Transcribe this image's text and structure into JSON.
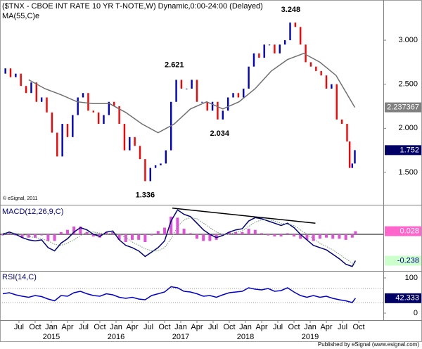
{
  "chart_data": [
    {
      "type": "line",
      "title": "($TNX - CBOE INT RATE 10 YR T-NOTE,W) Dynamic,0:00-24:00 (Delayed)",
      "subtitle": "MA(55,C)e",
      "watermark": "© eSignal, 2011",
      "xlim": [
        2014.207,
        2020.13
      ],
      "ylim": [
        1.14,
        3.456
      ],
      "yticks": [
        {
          "value": 1.5,
          "label": "1.500"
        },
        {
          "value": 2.0,
          "label": "2.000"
        },
        {
          "value": 2.5,
          "label": "2.500"
        },
        {
          "value": 3.0,
          "label": "3.000"
        }
      ],
      "series": [
        {
          "up_color": "#0000cc",
          "down_color": "#ff0000",
          "box_color": "#000066",
          "box_text_color": "#ffffff",
          "x": [
            2014.21,
            2014.29,
            2014.37,
            2014.45,
            2014.53,
            2014.61,
            2014.69,
            2014.77,
            2014.85,
            2014.93,
            2015.01,
            2015.09,
            2015.17,
            2015.25,
            2015.33,
            2015.41,
            2015.49,
            2015.57,
            2015.65,
            2015.73,
            2015.81,
            2015.89,
            2015.97,
            2016.05,
            2016.13,
            2016.21,
            2016.29,
            2016.37,
            2016.45,
            2016.53,
            2016.61,
            2016.69,
            2016.77,
            2016.85,
            2016.93,
            2017.01,
            2017.09,
            2017.17,
            2017.25,
            2017.33,
            2017.41,
            2017.49,
            2017.57,
            2017.65,
            2017.73,
            2017.81,
            2017.89,
            2017.97,
            2018.05,
            2018.13,
            2018.21,
            2018.29,
            2018.37,
            2018.45,
            2018.53,
            2018.61,
            2018.69,
            2018.77,
            2018.85,
            2018.93,
            2019.01,
            2019.09,
            2019.17,
            2019.25,
            2019.33,
            2019.41,
            2019.49,
            2019.57,
            2019.61,
            2019.65,
            2019.69
          ],
          "values": [
            2.62,
            2.68,
            2.58,
            2.62,
            2.48,
            2.4,
            2.52,
            2.3,
            2.35,
            2.18,
            1.95,
            1.68,
            2.05,
            1.9,
            2.15,
            2.35,
            2.4,
            2.2,
            2.18,
            2.05,
            2.15,
            2.3,
            2.25,
            2.05,
            1.75,
            1.9,
            1.8,
            1.65,
            1.4,
            1.55,
            1.58,
            1.6,
            1.75,
            2.3,
            2.55,
            2.45,
            2.45,
            2.55,
            2.3,
            2.3,
            2.2,
            2.3,
            2.1,
            2.2,
            2.35,
            2.4,
            2.35,
            2.45,
            2.7,
            2.85,
            2.8,
            2.95,
            2.95,
            2.85,
            2.95,
            3.0,
            3.2,
            3.15,
            2.95,
            2.75,
            2.7,
            2.65,
            2.6,
            2.45,
            2.5,
            2.1,
            2.05,
            1.85,
            1.55,
            1.6,
            1.752
          ]
        },
        {
          "color": "#707070",
          "box_color": "#808080",
          "box_text_color": "#ffffff",
          "x": [
            2014.65,
            2014.9,
            2015.15,
            2015.4,
            2015.65,
            2015.9,
            2016.15,
            2016.4,
            2016.65,
            2016.9,
            2017.15,
            2017.4,
            2017.65,
            2017.9,
            2018.15,
            2018.4,
            2018.65,
            2018.9,
            2019.15,
            2019.4,
            2019.69
          ],
          "values": [
            2.55,
            2.45,
            2.38,
            2.3,
            2.28,
            2.28,
            2.18,
            2.05,
            1.95,
            2.05,
            2.22,
            2.3,
            2.22,
            2.3,
            2.45,
            2.65,
            2.78,
            2.85,
            2.75,
            2.6,
            2.237367
          ]
        }
      ],
      "annotations": [
        {
          "x": 2016.9,
          "y": 2.621,
          "position": "above"
        },
        {
          "x": 2017.6,
          "y": 2.034,
          "position": "below"
        },
        {
          "x": 2016.45,
          "y": 1.336,
          "position": "below"
        },
        {
          "x": 2018.7,
          "y": 3.248,
          "position": "above"
        }
      ]
    },
    {
      "type": "line",
      "title": "MACD(12,26,9,C)",
      "xlim": [
        2014.207,
        2020.13
      ],
      "ylim": [
        -0.33,
        0.26
      ],
      "zero_line": true,
      "series": [
        {
          "kind": "bar",
          "color": "#e050d8",
          "box_color": "#ff66cc",
          "box_text_color": "#ffffff",
          "x": [
            2014.25,
            2014.35,
            2014.45,
            2014.55,
            2014.65,
            2014.75,
            2014.85,
            2014.95,
            2015.05,
            2015.15,
            2015.25,
            2015.35,
            2015.45,
            2015.55,
            2015.65,
            2015.75,
            2015.85,
            2015.95,
            2016.05,
            2016.15,
            2016.25,
            2016.35,
            2016.45,
            2016.55,
            2016.65,
            2016.75,
            2016.85,
            2016.95,
            2017.05,
            2017.15,
            2017.25,
            2017.35,
            2017.45,
            2017.55,
            2017.65,
            2017.75,
            2017.85,
            2017.95,
            2018.05,
            2018.15,
            2018.25,
            2018.35,
            2018.45,
            2018.55,
            2018.65,
            2018.75,
            2018.85,
            2018.95,
            2019.05,
            2019.15,
            2019.25,
            2019.35,
            2019.45,
            2019.55,
            2019.65,
            2019.7
          ],
          "values": [
            -0.01,
            0.01,
            -0.01,
            -0.03,
            -0.03,
            -0.03,
            -0.01,
            -0.06,
            -0.06,
            0.02,
            0.04,
            0.07,
            0.07,
            0.02,
            -0.02,
            -0.03,
            0.02,
            0.02,
            -0.05,
            -0.07,
            -0.05,
            -0.05,
            -0.07,
            -0.01,
            0.03,
            0.06,
            0.16,
            0.15,
            0.05,
            0.01,
            -0.04,
            -0.06,
            -0.06,
            -0.05,
            -0.01,
            0.02,
            0.02,
            0.02,
            0.05,
            0.04,
            0.01,
            -0.01,
            -0.02,
            -0.02,
            0.01,
            -0.02,
            -0.04,
            -0.05,
            -0.06,
            -0.04,
            -0.03,
            -0.04,
            -0.04,
            -0.05,
            -0.03,
            0.028
          ]
        },
        {
          "color": "#000080",
          "box_color": "#ccffcc",
          "box_text_color": "#000080",
          "x": [
            2014.25,
            2014.35,
            2014.45,
            2014.55,
            2014.65,
            2014.75,
            2014.85,
            2014.95,
            2015.05,
            2015.15,
            2015.25,
            2015.35,
            2015.45,
            2015.55,
            2015.65,
            2015.75,
            2015.85,
            2015.95,
            2016.05,
            2016.15,
            2016.25,
            2016.35,
            2016.45,
            2016.55,
            2016.65,
            2016.75,
            2016.85,
            2016.95,
            2017.05,
            2017.15,
            2017.25,
            2017.35,
            2017.45,
            2017.55,
            2017.65,
            2017.75,
            2017.85,
            2017.95,
            2018.05,
            2018.15,
            2018.25,
            2018.35,
            2018.45,
            2018.55,
            2018.65,
            2018.75,
            2018.85,
            2018.95,
            2019.05,
            2019.15,
            2019.25,
            2019.35,
            2019.45,
            2019.55,
            2019.65,
            2019.7
          ],
          "values": [
            0.0,
            0.02,
            0.0,
            -0.03,
            -0.05,
            -0.06,
            -0.05,
            -0.12,
            -0.15,
            -0.08,
            -0.04,
            0.02,
            0.06,
            0.04,
            0.0,
            -0.02,
            0.02,
            0.03,
            -0.05,
            -0.1,
            -0.12,
            -0.15,
            -0.2,
            -0.16,
            -0.12,
            -0.06,
            0.12,
            0.22,
            0.18,
            0.16,
            0.1,
            0.04,
            0.0,
            -0.03,
            -0.01,
            0.02,
            0.04,
            0.05,
            0.12,
            0.15,
            0.14,
            0.12,
            0.1,
            0.08,
            0.1,
            0.06,
            0.0,
            -0.05,
            -0.1,
            -0.12,
            -0.14,
            -0.18,
            -0.22,
            -0.27,
            -0.29,
            -0.238
          ]
        },
        {
          "color": "#6a9a6a",
          "style": "dotted",
          "x": [
            2014.25,
            2014.35,
            2014.45,
            2014.55,
            2014.65,
            2014.75,
            2014.85,
            2014.95,
            2015.05,
            2015.15,
            2015.25,
            2015.35,
            2015.45,
            2015.55,
            2015.65,
            2015.75,
            2015.85,
            2015.95,
            2016.05,
            2016.15,
            2016.25,
            2016.35,
            2016.45,
            2016.55,
            2016.65,
            2016.75,
            2016.85,
            2016.95,
            2017.05,
            2017.15,
            2017.25,
            2017.35,
            2017.45,
            2017.55,
            2017.65,
            2017.75,
            2017.85,
            2017.95,
            2018.05,
            2018.15,
            2018.25,
            2018.35,
            2018.45,
            2018.55,
            2018.65,
            2018.75,
            2018.85,
            2018.95,
            2019.05,
            2019.15,
            2019.25,
            2019.35,
            2019.45,
            2019.55,
            2019.65,
            2019.7
          ],
          "values": [
            0.01,
            0.01,
            0.01,
            0.0,
            -0.02,
            -0.03,
            -0.04,
            -0.06,
            -0.09,
            -0.1,
            -0.08,
            -0.05,
            -0.01,
            0.02,
            0.02,
            0.01,
            0.0,
            0.01,
            0.0,
            -0.03,
            -0.07,
            -0.1,
            -0.13,
            -0.15,
            -0.15,
            -0.12,
            -0.04,
            0.07,
            0.13,
            0.15,
            0.14,
            0.1,
            0.06,
            0.02,
            0.0,
            0.0,
            0.02,
            0.03,
            0.07,
            0.11,
            0.13,
            0.13,
            0.12,
            0.1,
            0.09,
            0.08,
            0.04,
            0.0,
            -0.04,
            -0.08,
            -0.11,
            -0.14,
            -0.18,
            -0.22,
            -0.26,
            -0.266
          ]
        },
        {
          "color": "#000000",
          "x": [
            2016.87,
            2019.08
          ],
          "values": [
            0.236,
            0.1
          ]
        }
      ]
    },
    {
      "type": "line",
      "title": "RSI(14,C)",
      "xlim": [
        2014.207,
        2020.13
      ],
      "ylim": [
        -20,
        120
      ],
      "yticks": [
        0,
        100
      ],
      "levels": [
        30,
        70
      ],
      "xticks": [
        {
          "value": 2014.5,
          "label": "Jul"
        },
        {
          "value": 2014.75,
          "label": "Oct"
        },
        {
          "value": 2015.0,
          "label": "Jan"
        },
        {
          "value": 2015.25,
          "label": "Apr"
        },
        {
          "value": 2015.5,
          "label": "Jul"
        },
        {
          "value": 2015.75,
          "label": "Oct"
        },
        {
          "value": 2016.0,
          "label": "Jan"
        },
        {
          "value": 2016.25,
          "label": "Apr"
        },
        {
          "value": 2016.5,
          "label": "Jul"
        },
        {
          "value": 2016.75,
          "label": "Oct"
        },
        {
          "value": 2017.0,
          "label": "Jan"
        },
        {
          "value": 2017.25,
          "label": "Apr"
        },
        {
          "value": 2017.5,
          "label": "Jul"
        },
        {
          "value": 2017.75,
          "label": "Oct"
        },
        {
          "value": 2018.0,
          "label": "Jan"
        },
        {
          "value": 2018.25,
          "label": "Apr"
        },
        {
          "value": 2018.5,
          "label": "Jul"
        },
        {
          "value": 2018.75,
          "label": "Oct"
        },
        {
          "value": 2019.0,
          "label": "Jan"
        },
        {
          "value": 2019.25,
          "label": "Apr"
        },
        {
          "value": 2019.5,
          "label": "Jul"
        },
        {
          "value": 2019.75,
          "label": "Oct"
        }
      ],
      "year_labels": [
        2015,
        2016,
        2017,
        2018,
        2019
      ],
      "series": [
        {
          "color": "#0000cc",
          "box_color": "#000066",
          "box_text_color": "#ffffff",
          "x": [
            2014.25,
            2014.35,
            2014.45,
            2014.55,
            2014.65,
            2014.75,
            2014.85,
            2014.95,
            2015.05,
            2015.15,
            2015.25,
            2015.35,
            2015.45,
            2015.55,
            2015.65,
            2015.75,
            2015.85,
            2015.95,
            2016.05,
            2016.15,
            2016.25,
            2016.35,
            2016.45,
            2016.55,
            2016.65,
            2016.75,
            2016.85,
            2016.95,
            2017.05,
            2017.15,
            2017.25,
            2017.35,
            2017.45,
            2017.55,
            2017.65,
            2017.75,
            2017.85,
            2017.95,
            2018.05,
            2018.15,
            2018.25,
            2018.35,
            2018.45,
            2018.55,
            2018.65,
            2018.75,
            2018.85,
            2018.95,
            2019.05,
            2019.15,
            2019.25,
            2019.35,
            2019.45,
            2019.55,
            2019.65,
            2019.7
          ],
          "values": [
            55,
            58,
            52,
            48,
            45,
            50,
            47,
            40,
            35,
            50,
            48,
            58,
            62,
            55,
            50,
            48,
            55,
            52,
            45,
            42,
            45,
            40,
            38,
            50,
            55,
            60,
            75,
            72,
            62,
            60,
            55,
            48,
            50,
            45,
            52,
            58,
            60,
            62,
            72,
            68,
            66,
            70,
            62,
            64,
            72,
            60,
            50,
            45,
            50,
            45,
            48,
            42,
            38,
            35,
            30,
            42.333
          ]
        }
      ]
    }
  ],
  "footer": "Published by eSignal (www.esignal.com)"
}
